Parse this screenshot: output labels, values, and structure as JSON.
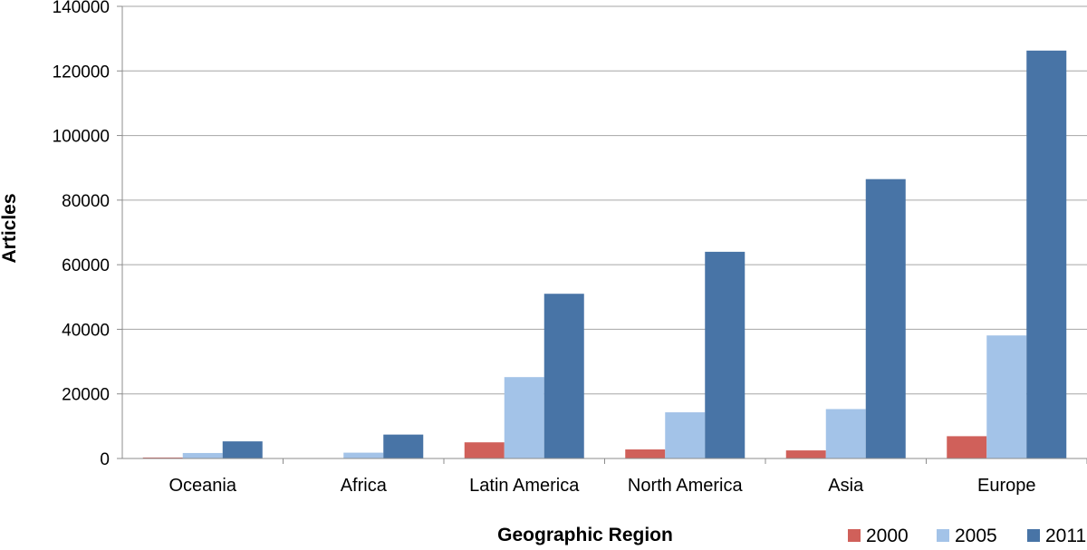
{
  "chart_data": {
    "type": "bar",
    "title": "",
    "xlabel": "Geographic Region",
    "ylabel": "Articles",
    "ylim": [
      0,
      140000
    ],
    "yticks": [
      0,
      20000,
      40000,
      60000,
      80000,
      100000,
      120000,
      140000
    ],
    "grid": true,
    "legend_position": "bottom-right",
    "categories": [
      "Oceania",
      "Africa",
      "Latin America",
      "North America",
      "Asia",
      "Europe"
    ],
    "series": [
      {
        "name": "2000",
        "color": "#D0605A",
        "values": [
          300,
          0,
          5000,
          2800,
          2500,
          6900
        ]
      },
      {
        "name": "2005",
        "color": "#A3C3E8",
        "values": [
          1700,
          1800,
          25200,
          14300,
          15300,
          38100
        ]
      },
      {
        "name": "2011",
        "color": "#4874A6",
        "values": [
          5300,
          7400,
          51000,
          64000,
          86500,
          126300
        ]
      }
    ]
  }
}
